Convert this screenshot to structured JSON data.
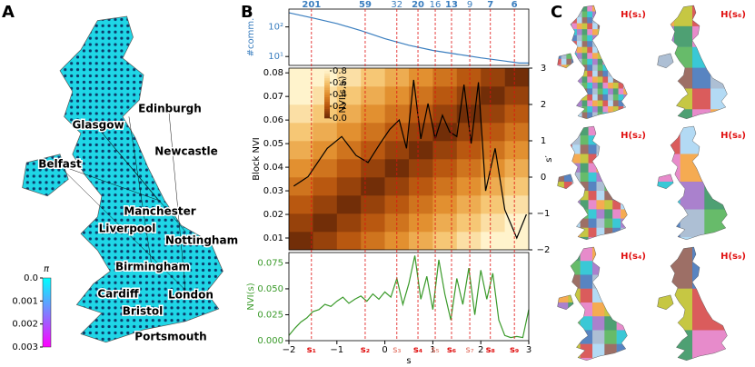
{
  "panel_labels": [
    "A",
    "B",
    "C"
  ],
  "map_a": {
    "cities": [
      "Edinburgh",
      "Glasgow",
      "Newcastle",
      "Belfast",
      "Manchester",
      "Liverpool",
      "Nottingham",
      "Birmingham",
      "Cardiff",
      "London",
      "Bristol",
      "Portsmouth"
    ],
    "colorbar": {
      "title": "π",
      "lim": [
        0,
        0.003
      ],
      "ticks": [
        {
          "value": 0,
          "label": "0.0"
        },
        0.001,
        0.002,
        0.003
      ],
      "colors": [
        "#00ffff",
        "#ff00ff"
      ]
    }
  },
  "resolutions": {
    "s": [
      -1.53,
      -0.41,
      0.25,
      0.69,
      1.05,
      1.39,
      1.77,
      2.2,
      2.7
    ],
    "labels": [
      "s₁",
      "s₂",
      "s₃",
      "s₄",
      "s₅",
      "s₆",
      "s₇",
      "s₈",
      "s₉"
    ],
    "communities": [
      201,
      59,
      32,
      20,
      16,
      13,
      9,
      7,
      6
    ],
    "major": [
      true,
      true,
      false,
      true,
      false,
      true,
      false,
      true,
      true
    ]
  },
  "chart_data": [
    {
      "type": "line",
      "ylabel": "#comm.",
      "log_y": true,
      "color": "#3a7ebf",
      "xlim": [
        -2,
        3
      ],
      "ylim": [
        5,
        400
      ],
      "yticks": [
        {
          "value": 10,
          "label": "10¹"
        },
        {
          "value": 100,
          "label": "10²"
        }
      ],
      "x": [
        -2,
        -1.5,
        -1,
        -0.5,
        0,
        0.5,
        1,
        1.5,
        2,
        2.5,
        2.8,
        3
      ],
      "values": [
        300,
        200,
        130,
        75,
        40,
        24,
        16,
        12,
        9,
        7,
        6,
        6
      ]
    },
    {
      "type": "heatmap",
      "ylabel": "Block NVI",
      "y2label": "s′",
      "xlim": [
        -2,
        3
      ],
      "ylim": [
        0.005,
        0.082
      ],
      "yticks": [
        0.01,
        0.02,
        0.03,
        0.04,
        0.05,
        0.06,
        0.07,
        0.08
      ],
      "y2lim": [
        -2,
        3
      ],
      "y2ticks": [
        {
          "value": -2,
          "label": "−2"
        },
        {
          "value": -1,
          "label": "−1"
        },
        0,
        1,
        2,
        3
      ],
      "bins": [
        -2,
        -1.5,
        -1,
        -0.5,
        0,
        0.5,
        1,
        1.5,
        2,
        2.5,
        3
      ],
      "matrix": [
        [
          0.02,
          0.12,
          0.22,
          0.32,
          0.42,
          0.52,
          0.62,
          0.72,
          0.8,
          0.8
        ],
        [
          0.12,
          0.02,
          0.12,
          0.22,
          0.32,
          0.42,
          0.52,
          0.62,
          0.72,
          0.8
        ],
        [
          0.22,
          0.12,
          0.02,
          0.12,
          0.22,
          0.32,
          0.42,
          0.52,
          0.62,
          0.72
        ],
        [
          0.32,
          0.22,
          0.12,
          0.02,
          0.12,
          0.22,
          0.32,
          0.42,
          0.52,
          0.62
        ],
        [
          0.42,
          0.32,
          0.22,
          0.12,
          0.02,
          0.12,
          0.22,
          0.32,
          0.42,
          0.52
        ],
        [
          0.52,
          0.42,
          0.32,
          0.22,
          0.12,
          0.02,
          0.12,
          0.22,
          0.32,
          0.42
        ],
        [
          0.62,
          0.52,
          0.42,
          0.32,
          0.22,
          0.12,
          0.02,
          0.12,
          0.22,
          0.32
        ],
        [
          0.72,
          0.62,
          0.52,
          0.42,
          0.32,
          0.22,
          0.12,
          0.02,
          0.12,
          0.22
        ],
        [
          0.8,
          0.72,
          0.62,
          0.52,
          0.42,
          0.32,
          0.22,
          0.12,
          0.02,
          0.12
        ],
        [
          0.8,
          0.8,
          0.72,
          0.62,
          0.52,
          0.42,
          0.32,
          0.22,
          0.12,
          0.02
        ]
      ],
      "colorbar": {
        "label": "NVI(s,s′)",
        "lim": [
          0,
          0.8
        ],
        "ticks": [
          {
            "value": 0,
            "label": "0.0"
          },
          0.2,
          0.4,
          0.6,
          0.8
        ],
        "colors": [
          "#6b2a07",
          "#b5520d",
          "#e08a2a",
          "#f5c26b",
          "#fff3cc"
        ]
      },
      "series": [
        {
          "color": "#000000",
          "x": [
            -1.9,
            -1.6,
            -1.2,
            -0.9,
            -0.6,
            -0.35,
            -0.1,
            0.1,
            0.3,
            0.45,
            0.6,
            0.75,
            0.9,
            1.05,
            1.2,
            1.35,
            1.5,
            1.65,
            1.8,
            1.95,
            2.1,
            2.3,
            2.5,
            2.75,
            2.95
          ],
          "values": [
            0.032,
            0.036,
            0.048,
            0.053,
            0.045,
            0.042,
            0.05,
            0.056,
            0.06,
            0.048,
            0.077,
            0.052,
            0.067,
            0.052,
            0.062,
            0.055,
            0.053,
            0.075,
            0.05,
            0.076,
            0.03,
            0.048,
            0.022,
            0.01,
            0.02
          ]
        }
      ]
    },
    {
      "type": "line",
      "xlabel": "s",
      "ylabel": "NVI(s)",
      "color": "#3a9a2a",
      "xlim": [
        -2,
        3
      ],
      "ylim": [
        0,
        0.085
      ],
      "yticks": [
        {
          "value": 0,
          "label": "0.000"
        },
        0.025,
        {
          "value": 0.05,
          "label": "0.050"
        },
        0.075
      ],
      "xticks": [
        {
          "value": -2,
          "label": "−2"
        },
        {
          "value": -1,
          "label": "−1"
        },
        0,
        1,
        2,
        3
      ],
      "x": [
        -2,
        -1.875,
        -1.75,
        -1.625,
        -1.5,
        -1.375,
        -1.25,
        -1.125,
        -1,
        -0.875,
        -0.75,
        -0.625,
        -0.5,
        -0.375,
        -0.25,
        -0.125,
        0,
        0.125,
        0.25,
        0.375,
        0.5,
        0.625,
        0.75,
        0.875,
        1,
        1.125,
        1.25,
        1.375,
        1.5,
        1.625,
        1.75,
        1.875,
        2,
        2.125,
        2.25,
        2.375,
        2.5,
        2.625,
        2.75,
        2.875,
        3
      ],
      "values": [
        0.005,
        0.012,
        0.018,
        0.022,
        0.028,
        0.03,
        0.035,
        0.033,
        0.038,
        0.042,
        0.036,
        0.04,
        0.043,
        0.038,
        0.045,
        0.04,
        0.047,
        0.042,
        0.06,
        0.035,
        0.055,
        0.082,
        0.04,
        0.062,
        0.03,
        0.078,
        0.045,
        0.02,
        0.06,
        0.035,
        0.07,
        0.025,
        0.068,
        0.04,
        0.065,
        0.02,
        0.005,
        0.003,
        0.004,
        0.003,
        0.03
      ]
    }
  ],
  "panel_c": {
    "titles": [
      "H(s₁)",
      "H(s₆)",
      "H(s₂)",
      "H(s₈)",
      "H(s₄)",
      "H(s₉)"
    ]
  }
}
